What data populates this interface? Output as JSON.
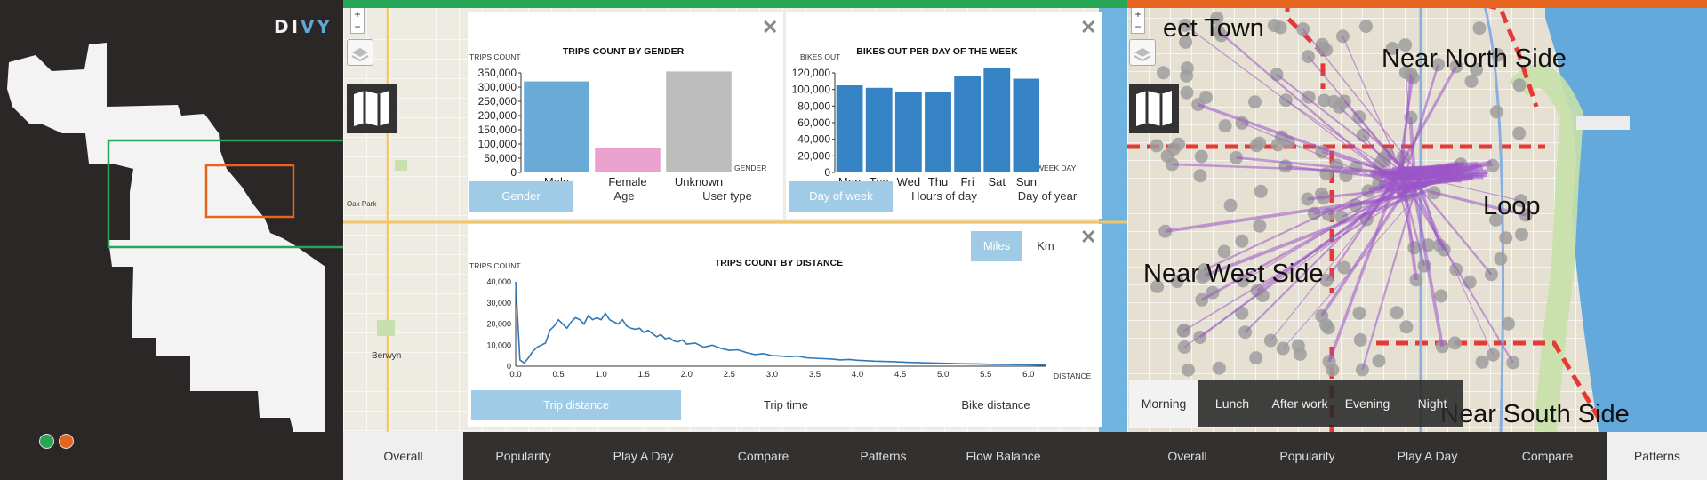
{
  "brand": {
    "logo_prefix": "DI",
    "logo_suffix": "VY"
  },
  "left_panel": {
    "legend_dots": [
      {
        "name": "green-dot",
        "color": "#27a656"
      },
      {
        "name": "orange-dot",
        "color": "#e5651f"
      }
    ],
    "frame_colors": {
      "green": "#27a656",
      "orange": "#e5651f"
    }
  },
  "map_controls": {
    "zoom_in": "+",
    "zoom_out": "−"
  },
  "gender_chart": {
    "title": "TRIPS COUNT BY GENDER",
    "ylabel": "TRIPS COUNT",
    "xlabel": "GENDER",
    "tabs": [
      "Gender",
      "Age",
      "User type"
    ],
    "active_tab": "Gender"
  },
  "weekday_chart": {
    "title": "BIKES OUT PER DAY OF THE WEEK",
    "ylabel": "BIKES OUT",
    "xlabel": "WEEK DAY",
    "tabs": [
      "Day of week",
      "Hours of day",
      "Day of year"
    ],
    "active_tab": "Day of week"
  },
  "distance_chart": {
    "title": "TRIPS COUNT BY DISTANCE",
    "ylabel": "TRIPS COUNT",
    "xlabel": "DISTANCE",
    "unit_toggle": [
      "Miles",
      "Km"
    ],
    "active_unit": "Miles",
    "tabs": [
      "Trip distance",
      "Trip time",
      "Bike distance"
    ],
    "active_tab": "Trip distance"
  },
  "chart_data": [
    {
      "type": "bar",
      "title": "TRIPS COUNT BY GENDER",
      "categories": [
        "Male",
        "Female",
        "Unknown"
      ],
      "values": [
        320000,
        85000,
        355000
      ],
      "ylim": [
        0,
        350000
      ],
      "yticks": [
        "0",
        "50,000",
        "100,000",
        "150,000",
        "200,000",
        "250,000",
        "300,000",
        "350,000"
      ],
      "colors": [
        "#6aaad7",
        "#e8a2cd",
        "#bdbdbd"
      ],
      "xlabel": "GENDER",
      "ylabel": "TRIPS COUNT"
    },
    {
      "type": "bar",
      "title": "BIKES OUT PER DAY OF THE WEEK",
      "categories": [
        "Mon",
        "Tue",
        "Wed",
        "Thu",
        "Fri",
        "Sat",
        "Sun"
      ],
      "values": [
        105000,
        102000,
        97000,
        97000,
        116000,
        130000,
        113000
      ],
      "ylim": [
        0,
        120000
      ],
      "yticks": [
        "0",
        "20,000",
        "40,000",
        "60,000",
        "80,000",
        "100,000",
        "120,000"
      ],
      "color": "#3582c4",
      "xlabel": "WEEK DAY",
      "ylabel": "BIKES OUT"
    },
    {
      "type": "line",
      "title": "TRIPS COUNT BY DISTANCE",
      "x": [
        0.0,
        0.05,
        0.1,
        0.15,
        0.2,
        0.25,
        0.3,
        0.35,
        0.4,
        0.45,
        0.5,
        0.55,
        0.6,
        0.65,
        0.7,
        0.75,
        0.8,
        0.85,
        0.9,
        0.95,
        1.0,
        1.05,
        1.1,
        1.15,
        1.2,
        1.25,
        1.3,
        1.35,
        1.4,
        1.45,
        1.5,
        1.55,
        1.6,
        1.65,
        1.7,
        1.75,
        1.8,
        1.85,
        1.9,
        1.95,
        2.0,
        2.1,
        2.2,
        2.3,
        2.4,
        2.5,
        2.6,
        2.7,
        2.8,
        2.9,
        3.0,
        3.1,
        3.2,
        3.3,
        3.4,
        3.5,
        3.6,
        3.7,
        3.8,
        3.9,
        4.0,
        4.2,
        4.4,
        4.6,
        4.8,
        5.0,
        5.2,
        5.4,
        5.6,
        5.8,
        6.0,
        6.2
      ],
      "y": [
        40000,
        3000,
        1500,
        4000,
        7000,
        9000,
        10000,
        11000,
        17000,
        19000,
        22000,
        20000,
        18000,
        21000,
        23000,
        22000,
        20000,
        24000,
        22000,
        23000,
        22000,
        25000,
        22000,
        21000,
        20000,
        22000,
        19000,
        18000,
        17500,
        18000,
        16000,
        17000,
        15500,
        14000,
        15000,
        13000,
        13500,
        12000,
        11500,
        12500,
        10500,
        11000,
        9000,
        10000,
        8500,
        7500,
        7800,
        6500,
        5500,
        6000,
        5000,
        4800,
        4500,
        4800,
        4000,
        3800,
        3600,
        3400,
        3000,
        3200,
        2800,
        2400,
        2200,
        1800,
        1600,
        1400,
        1200,
        1100,
        900,
        800,
        700,
        500
      ],
      "xlim": [
        0,
        6.2
      ],
      "ylim": [
        0,
        40000
      ],
      "xticks": [
        "0.0",
        "0.5",
        "1.0",
        "1.5",
        "2.0",
        "2.5",
        "3.0",
        "3.5",
        "4.0",
        "4.5",
        "5.0",
        "5.5",
        "6.0"
      ],
      "yticks": [
        "0",
        "10,000",
        "20,000",
        "30,000",
        "40,000"
      ],
      "color": "#2f78b7",
      "xlabel": "DISTANCE",
      "ylabel": "TRIPS COUNT"
    }
  ],
  "bottom_nav_left": {
    "items": [
      "Overall",
      "Popularity",
      "Play A Day",
      "Compare",
      "Patterns",
      "Flow Balance"
    ],
    "active": "Overall"
  },
  "bottom_nav_right": {
    "items": [
      "Overall",
      "Popularity",
      "Play A Day",
      "Compare",
      "Patterns"
    ],
    "active": "Patterns"
  },
  "right_map": {
    "area_labels": [
      "Near North Side",
      "Loop",
      "Near West Side",
      "Near South Side",
      "ect Town"
    ],
    "time_of_day": [
      "Morning",
      "Lunch",
      "After work",
      "Evening",
      "Night"
    ],
    "active_time": "Morning",
    "flow_color": "#9b55c8",
    "station_color": "#9e9e9e",
    "boundary_color": "#e53935"
  },
  "mid_map_labels": [
    "Oak Park",
    "Berwyn"
  ]
}
